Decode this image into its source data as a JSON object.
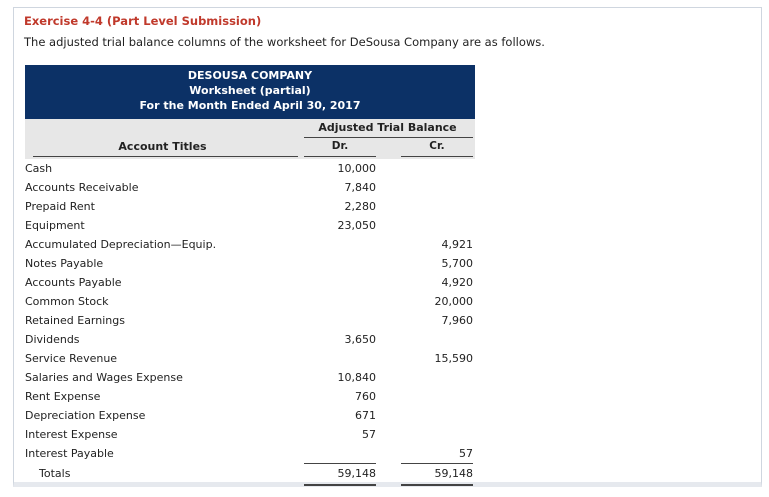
{
  "exercise": {
    "title": "Exercise 4-4 (Part Level Submission)",
    "description": "The adjusted trial balance columns of the worksheet for DeSousa Company are as follows."
  },
  "worksheet": {
    "company": "DESOUSA COMPANY",
    "subtitle": "Worksheet (partial)",
    "period": "For the Month Ended April 30, 2017",
    "group_header": "Adjusted Trial Balance",
    "account_header": "Account Titles",
    "dr_header": "Dr.",
    "cr_header": "Cr.",
    "header_color": "#0c3166",
    "rows": [
      {
        "account": "Cash",
        "dr": "10,000",
        "cr": ""
      },
      {
        "account": "Accounts Receivable",
        "dr": "7,840",
        "cr": ""
      },
      {
        "account": "Prepaid Rent",
        "dr": "2,280",
        "cr": ""
      },
      {
        "account": "Equipment",
        "dr": "23,050",
        "cr": ""
      },
      {
        "account": "Accumulated Depreciation—Equip.",
        "dr": "",
        "cr": "4,921"
      },
      {
        "account": "Notes Payable",
        "dr": "",
        "cr": "5,700"
      },
      {
        "account": "Accounts Payable",
        "dr": "",
        "cr": "4,920"
      },
      {
        "account": "Common Stock",
        "dr": "",
        "cr": "20,000"
      },
      {
        "account": "Retained Earnings",
        "dr": "",
        "cr": "7,960"
      },
      {
        "account": "Dividends",
        "dr": "3,650",
        "cr": ""
      },
      {
        "account": "Service Revenue",
        "dr": "",
        "cr": "15,590"
      },
      {
        "account": "Salaries and Wages Expense",
        "dr": "10,840",
        "cr": ""
      },
      {
        "account": "Rent Expense",
        "dr": "760",
        "cr": ""
      },
      {
        "account": "Depreciation Expense",
        "dr": "671",
        "cr": ""
      },
      {
        "account": "Interest Expense",
        "dr": "57",
        "cr": ""
      },
      {
        "account": "Interest Payable",
        "dr": "",
        "cr": "57"
      }
    ],
    "totals": {
      "label": "Totals",
      "dr": "59,148",
      "cr": "59,148"
    }
  }
}
